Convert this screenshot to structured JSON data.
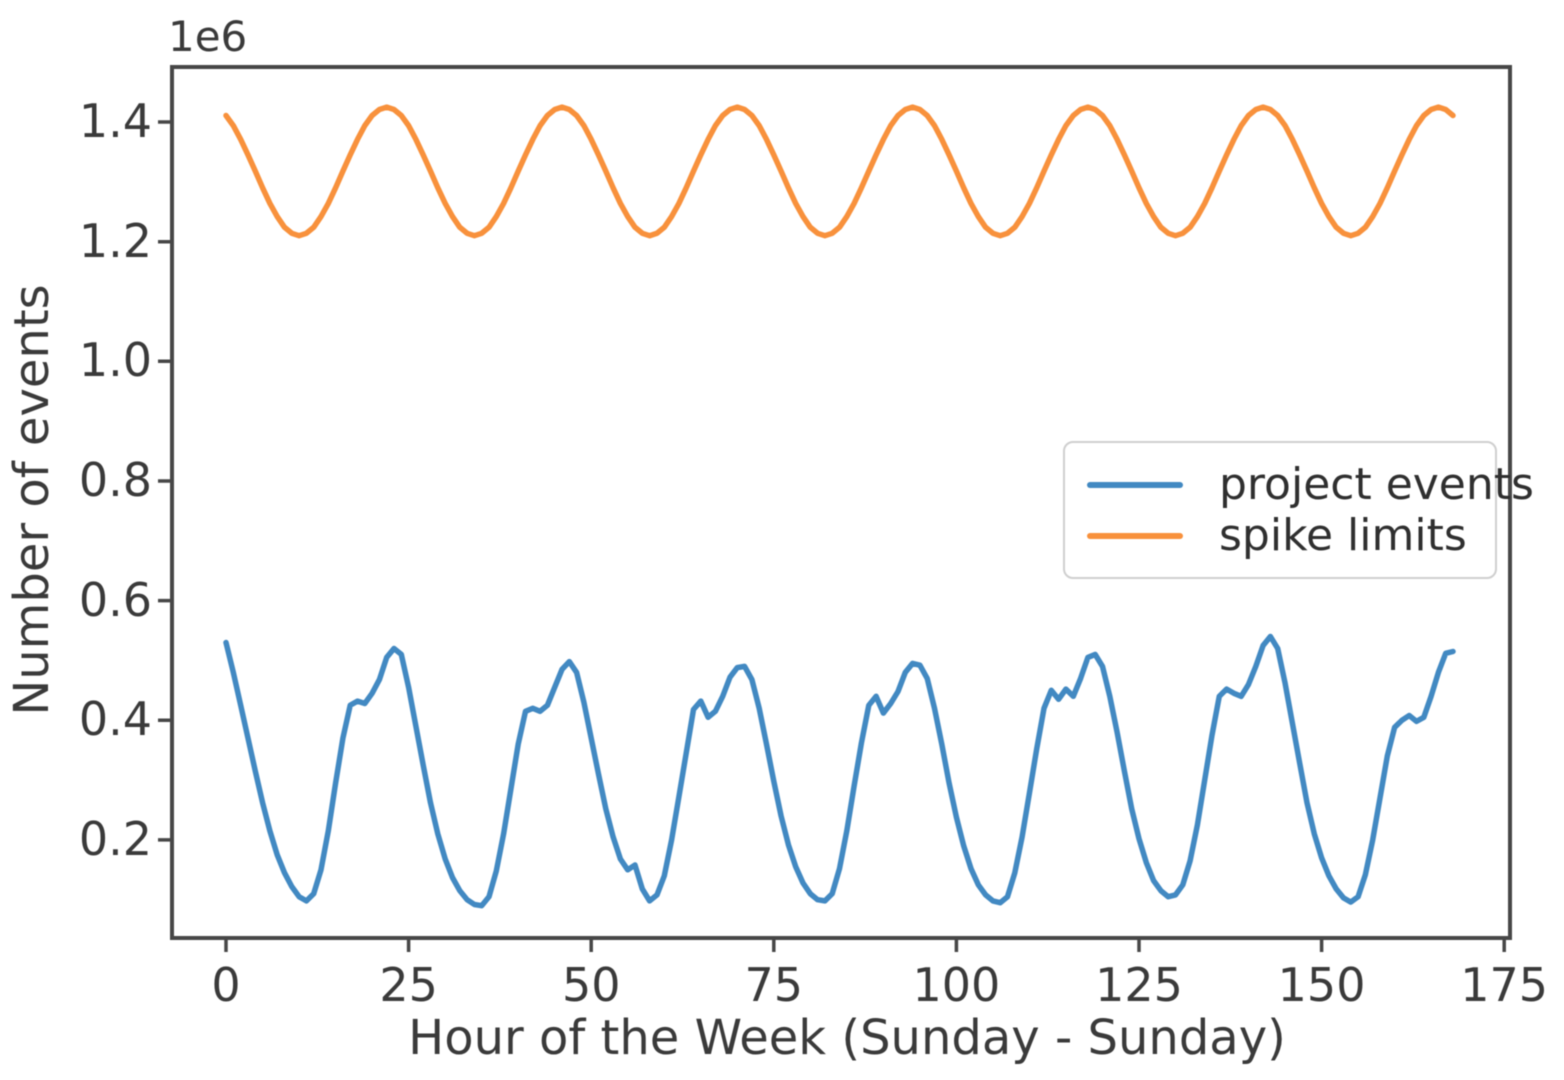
{
  "figure": {
    "y_offset_label": "1e6"
  },
  "chart_data": {
    "type": "line",
    "title": "",
    "xlabel": "Hour of the Week (Sunday - Sunday)",
    "ylabel": "Number of events",
    "y_unit_multiplier": "1e6",
    "x_tick_labels": [
      "0",
      "25",
      "50",
      "75",
      "100",
      "125",
      "150",
      "175"
    ],
    "x_ticks": [
      0,
      25,
      50,
      75,
      100,
      125,
      150,
      175
    ],
    "y_tick_labels": [
      "0.2",
      "0.4",
      "0.6",
      "0.8",
      "1.0",
      "1.2",
      "1.4"
    ],
    "y_ticks": [
      0.2,
      0.4,
      0.6,
      0.8,
      1.0,
      1.2,
      1.4
    ],
    "xlim": [
      -7.4,
      175.8
    ],
    "ylim": [
      0.036,
      1.492
    ],
    "grid": false,
    "legend_position": "center right",
    "x": {
      "start": 0,
      "step": 1,
      "count": 169,
      "unit": "hour"
    },
    "series": [
      {
        "id": "project-events",
        "name": "project events",
        "color": "#4289c2",
        "values": [
          0.53,
          0.48,
          0.425,
          0.37,
          0.315,
          0.262,
          0.215,
          0.175,
          0.145,
          0.122,
          0.105,
          0.098,
          0.11,
          0.15,
          0.215,
          0.295,
          0.37,
          0.425,
          0.432,
          0.428,
          0.445,
          0.468,
          0.505,
          0.52,
          0.51,
          0.455,
          0.39,
          0.325,
          0.262,
          0.21,
          0.168,
          0.137,
          0.115,
          0.1,
          0.092,
          0.09,
          0.105,
          0.148,
          0.21,
          0.285,
          0.36,
          0.415,
          0.42,
          0.415,
          0.425,
          0.455,
          0.485,
          0.498,
          0.48,
          0.43,
          0.37,
          0.31,
          0.252,
          0.205,
          0.168,
          0.15,
          0.158,
          0.118,
          0.098,
          0.108,
          0.14,
          0.2,
          0.272,
          0.345,
          0.418,
          0.432,
          0.405,
          0.415,
          0.44,
          0.472,
          0.488,
          0.49,
          0.468,
          0.42,
          0.36,
          0.298,
          0.24,
          0.192,
          0.155,
          0.128,
          0.11,
          0.1,
          0.098,
          0.11,
          0.152,
          0.215,
          0.29,
          0.362,
          0.425,
          0.44,
          0.412,
          0.428,
          0.448,
          0.48,
          0.495,
          0.492,
          0.47,
          0.42,
          0.36,
          0.295,
          0.238,
          0.19,
          0.152,
          0.125,
          0.108,
          0.098,
          0.095,
          0.105,
          0.145,
          0.205,
          0.278,
          0.352,
          0.42,
          0.45,
          0.435,
          0.452,
          0.44,
          0.47,
          0.505,
          0.51,
          0.49,
          0.44,
          0.38,
          0.315,
          0.252,
          0.202,
          0.162,
          0.132,
          0.115,
          0.105,
          0.108,
          0.125,
          0.165,
          0.225,
          0.3,
          0.375,
          0.44,
          0.452,
          0.445,
          0.44,
          0.46,
          0.49,
          0.525,
          0.54,
          0.52,
          0.462,
          0.395,
          0.328,
          0.262,
          0.21,
          0.17,
          0.14,
          0.118,
          0.103,
          0.096,
          0.105,
          0.142,
          0.2,
          0.27,
          0.34,
          0.388,
          0.4,
          0.408,
          0.398,
          0.405,
          0.44,
          0.48,
          0.512,
          0.515
        ]
      },
      {
        "id": "spike-limits",
        "name": "spike limits",
        "color": "#f8913c",
        "values": [
          1.411,
          1.394,
          1.371,
          1.345,
          1.318,
          1.29,
          1.264,
          1.242,
          1.224,
          1.214,
          1.21,
          1.214,
          1.224,
          1.242,
          1.264,
          1.29,
          1.318,
          1.345,
          1.371,
          1.394,
          1.411,
          1.421,
          1.425,
          1.421,
          1.411,
          1.394,
          1.371,
          1.345,
          1.318,
          1.29,
          1.264,
          1.242,
          1.224,
          1.214,
          1.21,
          1.214,
          1.224,
          1.242,
          1.264,
          1.29,
          1.318,
          1.345,
          1.371,
          1.394,
          1.411,
          1.421,
          1.425,
          1.421,
          1.411,
          1.394,
          1.371,
          1.345,
          1.318,
          1.29,
          1.264,
          1.242,
          1.224,
          1.214,
          1.21,
          1.214,
          1.224,
          1.242,
          1.264,
          1.29,
          1.318,
          1.345,
          1.371,
          1.394,
          1.411,
          1.421,
          1.425,
          1.421,
          1.411,
          1.394,
          1.371,
          1.345,
          1.318,
          1.29,
          1.264,
          1.242,
          1.224,
          1.214,
          1.21,
          1.214,
          1.224,
          1.242,
          1.264,
          1.29,
          1.318,
          1.345,
          1.371,
          1.394,
          1.411,
          1.421,
          1.425,
          1.421,
          1.411,
          1.394,
          1.371,
          1.345,
          1.318,
          1.29,
          1.264,
          1.242,
          1.224,
          1.214,
          1.21,
          1.214,
          1.224,
          1.242,
          1.264,
          1.29,
          1.318,
          1.345,
          1.371,
          1.394,
          1.411,
          1.421,
          1.425,
          1.421,
          1.411,
          1.394,
          1.371,
          1.345,
          1.318,
          1.29,
          1.264,
          1.242,
          1.224,
          1.214,
          1.21,
          1.214,
          1.224,
          1.242,
          1.264,
          1.29,
          1.318,
          1.345,
          1.371,
          1.394,
          1.411,
          1.421,
          1.425,
          1.421,
          1.411,
          1.394,
          1.371,
          1.345,
          1.318,
          1.29,
          1.264,
          1.242,
          1.224,
          1.214,
          1.21,
          1.214,
          1.224,
          1.242,
          1.264,
          1.29,
          1.318,
          1.345,
          1.371,
          1.394,
          1.411,
          1.421,
          1.425,
          1.421,
          1.411
        ]
      }
    ]
  }
}
